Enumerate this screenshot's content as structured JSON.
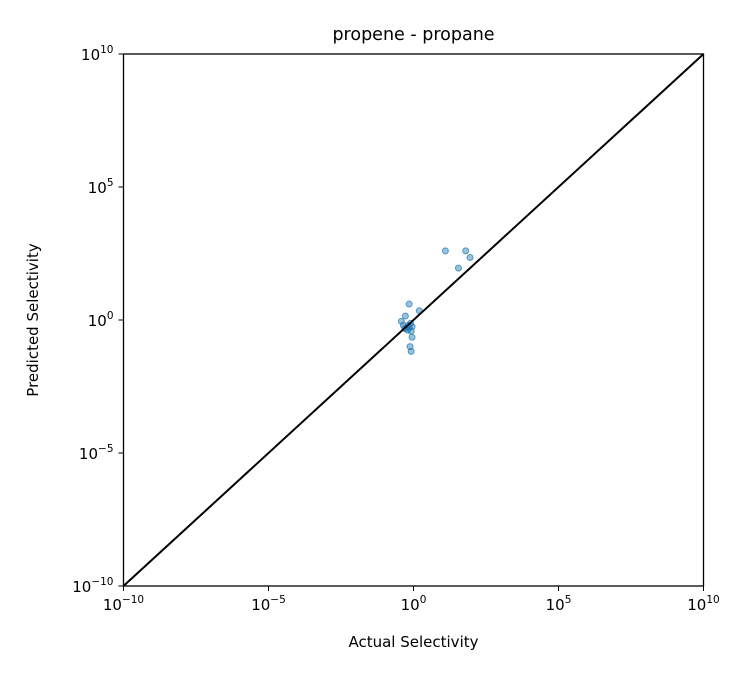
{
  "chart_data": {
    "type": "scatter",
    "title": "propene - propane",
    "xlabel": "Actual Selectivity",
    "ylabel": "Predicted Selectivity",
    "xscale": "log",
    "yscale": "log",
    "xlim_exp": [
      -10,
      10
    ],
    "ylim_exp": [
      -10,
      10
    ],
    "x_ticks": [
      {
        "exp": -10,
        "base": "10",
        "sup": "−10"
      },
      {
        "exp": -5,
        "base": "10",
        "sup": "−5"
      },
      {
        "exp": 0,
        "base": "10",
        "sup": "0"
      },
      {
        "exp": 5,
        "base": "10",
        "sup": "5"
      },
      {
        "exp": 10,
        "base": "10",
        "sup": "10"
      }
    ],
    "y_ticks": [
      {
        "exp": -10,
        "base": "10",
        "sup": "−10"
      },
      {
        "exp": -5,
        "base": "10",
        "sup": "−5"
      },
      {
        "exp": 0,
        "base": "10",
        "sup": "0"
      },
      {
        "exp": 5,
        "base": "10",
        "sup": "5"
      },
      {
        "exp": 10,
        "base": "10",
        "sup": "10"
      }
    ],
    "parity_line": {
      "from_exp": -10,
      "to_exp": 10,
      "color": "#000000"
    },
    "grid": false,
    "marker_color": "#1f77b4",
    "points_log10": [
      {
        "x": 1.1,
        "y": 2.6
      },
      {
        "x": 1.55,
        "y": 1.95
      },
      {
        "x": 1.95,
        "y": 2.35
      },
      {
        "x": 1.8,
        "y": 2.6
      },
      {
        "x": -0.15,
        "y": 0.6
      },
      {
        "x": 0.2,
        "y": 0.35
      },
      {
        "x": -0.28,
        "y": 0.15
      },
      {
        "x": -0.42,
        "y": -0.05
      },
      {
        "x": -0.35,
        "y": -0.2
      },
      {
        "x": -0.25,
        "y": -0.3
      },
      {
        "x": -0.15,
        "y": -0.28
      },
      {
        "x": -0.05,
        "y": -0.25
      },
      {
        "x": -0.1,
        "y": -0.12
      },
      {
        "x": -0.2,
        "y": -0.38
      },
      {
        "x": -0.3,
        "y": -0.32
      },
      {
        "x": -0.08,
        "y": -0.42
      },
      {
        "x": -0.05,
        "y": -0.65
      },
      {
        "x": -0.12,
        "y": -1.0
      },
      {
        "x": -0.08,
        "y": -1.18
      },
      {
        "x": -0.18,
        "y": -0.2
      }
    ]
  }
}
